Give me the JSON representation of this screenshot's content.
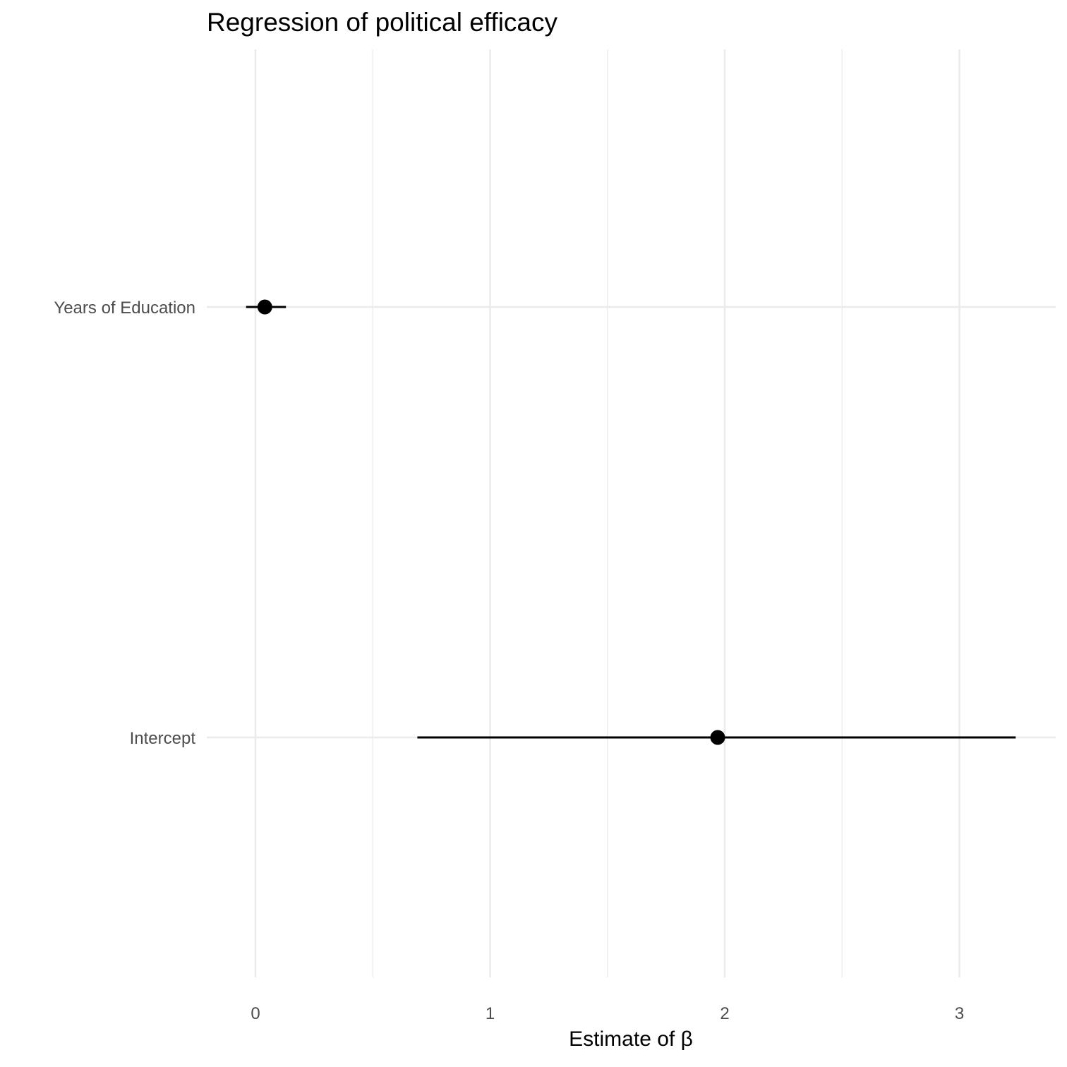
{
  "chart_data": {
    "type": "point-range",
    "title": "Regression of political efficacy",
    "xlabel": "Estimate of β",
    "ylabel": "",
    "xlim": [
      -0.2,
      3.4
    ],
    "x_major_ticks": [
      0,
      1,
      2,
      3
    ],
    "x_minor_ticks": [
      0.5,
      1.5,
      2.5
    ],
    "x_tick_labels": [
      "0",
      "1",
      "2",
      "3"
    ],
    "grid": true,
    "legend": "none",
    "categories": [
      "Years of Education",
      "Intercept"
    ],
    "points": [
      {
        "term": "Years of Education",
        "estimate": 0.04,
        "lower": -0.04,
        "upper": 0.13
      },
      {
        "term": "Intercept",
        "estimate": 1.97,
        "lower": 0.69,
        "upper": 3.24
      }
    ],
    "colors": {
      "point": "#000000",
      "grid": "#ebebeb"
    }
  }
}
